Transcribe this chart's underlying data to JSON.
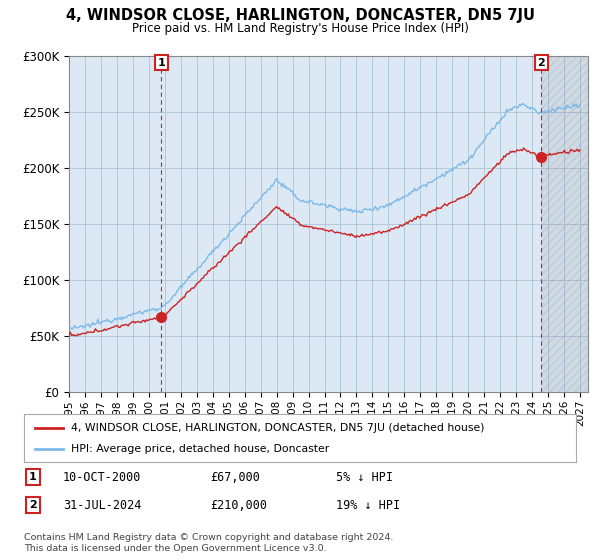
{
  "title": "4, WINDSOR CLOSE, HARLINGTON, DONCASTER, DN5 7JU",
  "subtitle": "Price paid vs. HM Land Registry's House Price Index (HPI)",
  "legend_line1": "4, WINDSOR CLOSE, HARLINGTON, DONCASTER, DN5 7JU (detached house)",
  "legend_line2": "HPI: Average price, detached house, Doncaster",
  "annotation1_date": "10-OCT-2000",
  "annotation1_price": "£67,000",
  "annotation1_hpi": "5% ↓ HPI",
  "annotation2_date": "31-JUL-2024",
  "annotation2_price": "£210,000",
  "annotation2_hpi": "19% ↓ HPI",
  "footer": "Contains HM Land Registry data © Crown copyright and database right 2024.\nThis data is licensed under the Open Government Licence v3.0.",
  "hpi_color": "#7cb9e8",
  "property_color": "#cc2222",
  "vline_color": "#cc2222",
  "chart_bg": "#dce9f5",
  "background_color": "#ffffff",
  "grid_color": "#adc4d8",
  "ylim": [
    0,
    300000
  ],
  "xlim_start": 1995.0,
  "xlim_end": 2027.5,
  "point1_x": 2000.78,
  "point1_y": 67000,
  "point2_x": 2024.58,
  "point2_y": 210000
}
